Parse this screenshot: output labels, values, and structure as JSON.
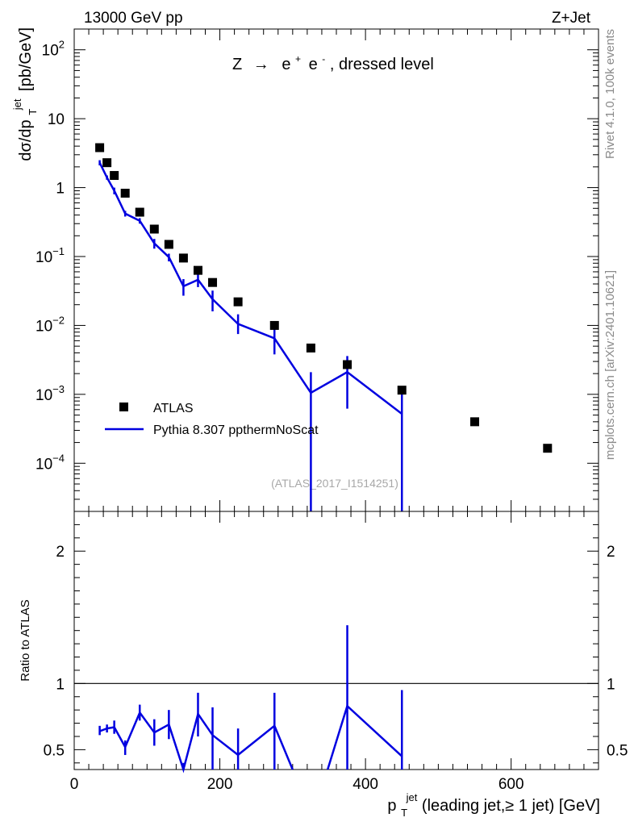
{
  "header": {
    "left": "13000 GeV pp",
    "right": "Z+Jet"
  },
  "side_labels": {
    "top": "Rivet 4.1.0,  100k events",
    "bottom": "mcplots.cern.ch [arXiv:2401.10621]"
  },
  "chart_data": [
    {
      "type": "scatter",
      "title": "Z → e⁺ e⁻, dressed level",
      "title_parts": {
        "z": "Z",
        "arrow": "→",
        "e": "e",
        "plus": "+",
        "minus": "-",
        "rest": ", dressed level"
      },
      "source_tag": "(ATLAS_2017_I1514251)",
      "ylabel": "dσ/dp_T^jet [pb/GeV]",
      "ylabel_parts": {
        "main": "dσ/dp",
        "sub": "T",
        "sup": "jet",
        "unit": "[pb/GeV]"
      },
      "yscale": "log",
      "ylim": [
        2e-05,
        200
      ],
      "xlim": [
        0,
        720
      ],
      "y_ticks": [
        {
          "value": 0.0001,
          "base": "10",
          "exp": "−4"
        },
        {
          "value": 0.001,
          "base": "10",
          "exp": "−3"
        },
        {
          "value": 0.01,
          "base": "10",
          "exp": "−2"
        },
        {
          "value": 0.1,
          "base": "10",
          "exp": "−1"
        },
        {
          "value": 1,
          "base": "1",
          "exp": ""
        },
        {
          "value": 10,
          "base": "10",
          "exp": ""
        },
        {
          "value": 100,
          "base": "10",
          "exp": "2"
        }
      ],
      "legend": {
        "position": "bottom-left",
        "entries": [
          "ATLAS",
          "Pythia 8.307 ppthermNoScat"
        ]
      },
      "series": [
        {
          "name": "ATLAS",
          "style": "markers",
          "color": "#000000",
          "x": [
            35,
            45,
            55,
            70,
            90,
            110,
            130,
            150,
            170,
            190,
            225,
            275,
            325,
            375,
            450,
            550,
            650
          ],
          "y": [
            3.8,
            2.3,
            1.5,
            0.83,
            0.44,
            0.25,
            0.15,
            0.095,
            0.063,
            0.042,
            0.022,
            0.01,
            0.0047,
            0.0027,
            0.00115,
            0.0004,
            0.000165
          ]
        },
        {
          "name": "Pythia 8.307 ppthermNoScat",
          "style": "line",
          "color": "#0000e0",
          "x": [
            35,
            45,
            55,
            70,
            90,
            110,
            130,
            150,
            170,
            190,
            225,
            275,
            325,
            375,
            450
          ],
          "y": [
            2.3,
            1.4,
            0.9,
            0.42,
            0.33,
            0.155,
            0.098,
            0.037,
            0.046,
            0.024,
            0.0105,
            0.0065,
            0.00105,
            0.0021,
            0.00052
          ],
          "y_low": [
            2.1,
            1.3,
            0.8,
            0.38,
            0.3,
            0.13,
            0.085,
            0.027,
            0.036,
            0.016,
            0.0075,
            0.0038,
            1e-05,
            0.00062,
            1e-05
          ],
          "y_high": [
            2.5,
            1.5,
            1.0,
            0.46,
            0.36,
            0.18,
            0.11,
            0.047,
            0.056,
            0.032,
            0.0145,
            0.0092,
            0.0021,
            0.0036,
            0.00115
          ]
        }
      ]
    },
    {
      "type": "line",
      "ylabel": "Ratio to ATLAS",
      "xlabel": "p_T^jet (leading jet,≥ 1 jet) [GeV]",
      "xlabel_parts": {
        "p": "p",
        "sub": "T",
        "sup": "jet",
        "rest": " (leading jet,≥ 1 jet) [GeV]"
      },
      "ylim": [
        0.35,
        2.3
      ],
      "xlim": [
        0,
        720
      ],
      "x_ticks": [
        0,
        200,
        400,
        600
      ],
      "y_ticks": [
        {
          "value": 0.5,
          "label": "0.5"
        },
        {
          "value": 1,
          "label": "1"
        },
        {
          "value": 2,
          "label": "2"
        }
      ],
      "reference_line": 1,
      "series": [
        {
          "name": "Pythia 8.307 ppthermNoScat / ATLAS",
          "color": "#0000e0",
          "segments": [
            {
              "x": [
                35,
                45,
                55,
                70,
                90,
                110,
                130,
                150,
                170,
                190,
                225,
                275,
                300
              ],
              "y": [
                0.64,
                0.66,
                0.67,
                0.52,
                0.78,
                0.63,
                0.69,
                0.33,
                0.77,
                0.61,
                0.46,
                0.68,
                0.3
              ]
            },
            {
              "x": [
                348,
                375,
                450
              ],
              "y": [
                0.3,
                0.83,
                0.45
              ]
            }
          ],
          "errorbars": [
            {
              "x": 35,
              "lo": 0.61,
              "hi": 0.68
            },
            {
              "x": 45,
              "lo": 0.63,
              "hi": 0.69
            },
            {
              "x": 55,
              "lo": 0.62,
              "hi": 0.72
            },
            {
              "x": 70,
              "lo": 0.46,
              "hi": 0.57
            },
            {
              "x": 90,
              "lo": 0.72,
              "hi": 0.84
            },
            {
              "x": 110,
              "lo": 0.53,
              "hi": 0.73
            },
            {
              "x": 130,
              "lo": 0.58,
              "hi": 0.8
            },
            {
              "x": 150,
              "lo": 0.3,
              "hi": 0.4
            },
            {
              "x": 170,
              "lo": 0.6,
              "hi": 0.93
            },
            {
              "x": 190,
              "lo": 0.3,
              "hi": 0.82
            },
            {
              "x": 225,
              "lo": 0.3,
              "hi": 0.66
            },
            {
              "x": 275,
              "lo": 0.3,
              "hi": 0.93
            },
            {
              "x": 375,
              "lo": 0.3,
              "hi": 1.44
            },
            {
              "x": 450,
              "lo": 0.3,
              "hi": 0.95
            }
          ]
        }
      ]
    }
  ]
}
